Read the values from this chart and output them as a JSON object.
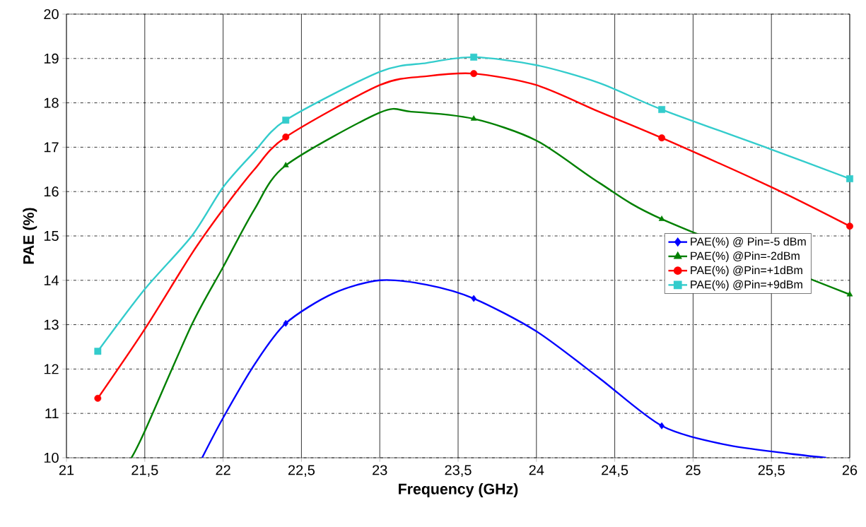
{
  "chart_data": {
    "type": "line",
    "xlabel": "Frequency (GHz)",
    "ylabel": "PAE (%)",
    "xlim": [
      21,
      26
    ],
    "ylim": [
      10,
      20
    ],
    "xticks": [
      21,
      {
        "value": 21.5,
        "label": "21,5"
      },
      22,
      {
        "value": 22.5,
        "label": "22,5"
      },
      23,
      {
        "value": 23.5,
        "label": "23,5"
      },
      24,
      {
        "value": 24.5,
        "label": "24,5"
      },
      25,
      {
        "value": 25.5,
        "label": "25,5"
      },
      26
    ],
    "yticks": [
      10,
      11,
      12,
      13,
      14,
      15,
      16,
      17,
      18,
      19,
      20
    ],
    "grid": true,
    "legend": "right",
    "series": [
      {
        "color": "#0000ff",
        "marker": "none",
        "x": [
          21.866,
          22.0,
          22.2,
          22.4,
          22.7,
          23.0,
          23.3,
          23.6,
          24.0,
          24.4,
          24.8,
          25.2,
          25.6,
          25.85
        ],
        "values": [
          10,
          10.9,
          12.1,
          13.03,
          13.7,
          14.0,
          13.9,
          13.59,
          12.85,
          11.8,
          10.72,
          10.3,
          10.1,
          10
        ]
      },
      {
        "color": "#008000",
        "marker": "none",
        "x": [
          21.415,
          21.5,
          21.8,
          22.0,
          22.2,
          22.4,
          23.0,
          23.2,
          23.6,
          24.0,
          24.4,
          24.8,
          25.5,
          26.0
        ],
        "values": [
          10,
          10.6,
          13.0,
          14.3,
          15.6,
          16.59,
          17.78,
          17.8,
          17.64,
          17.15,
          16.2,
          15.38,
          null,
          13.68
        ]
      },
      {
        "color": "#ff0000",
        "marker": "none",
        "x": [
          21.2,
          21.5,
          21.8,
          22.0,
          22.2,
          22.4,
          23.0,
          23.3,
          23.6,
          24.0,
          24.4,
          24.8,
          25.5,
          26.0
        ],
        "values": [
          11.34,
          12.9,
          14.6,
          15.6,
          16.5,
          17.23,
          18.4,
          18.6,
          18.66,
          18.4,
          17.8,
          17.21,
          16.1,
          15.22
        ]
      },
      {
        "color": "#33cccc",
        "marker": "none",
        "x": [
          21.2,
          21.5,
          21.8,
          22.0,
          22.2,
          22.4,
          23.0,
          23.3,
          23.6,
          24.0,
          24.4,
          24.8,
          25.5,
          26.0
        ],
        "values": [
          12.4,
          13.8,
          15.0,
          16.1,
          16.9,
          17.61,
          18.7,
          18.9,
          19.03,
          18.85,
          18.45,
          17.85,
          16.95,
          16.29
        ]
      },
      {
        "type": "scatter",
        "name": "PAE(%) @ Pin=-5 dBm",
        "color": "#0000ff",
        "marker": "diamond",
        "x": [
          22.4,
          23.6,
          24.8
        ],
        "values": [
          13.03,
          13.59,
          10.72
        ]
      },
      {
        "type": "scatter",
        "name": "PAE(%) @Pin=-2dBm",
        "color": "#008000",
        "marker": "triangle",
        "x": [
          22.4,
          23.6,
          24.8,
          26.0
        ],
        "values": [
          16.59,
          17.64,
          15.38,
          13.68
        ]
      },
      {
        "type": "scatter",
        "name": "PAE(%) @Pin=+1dBm",
        "color": "#ff0000",
        "marker": "circle",
        "x": [
          21.2,
          22.4,
          23.6,
          24.8,
          26.0
        ],
        "values": [
          11.34,
          17.23,
          18.66,
          17.21,
          15.22
        ]
      },
      {
        "type": "scatter",
        "name": "PAE(%) @Pin=+9dBm",
        "color": "#33cccc",
        "marker": "square",
        "x": [
          21.2,
          22.4,
          23.6,
          24.8,
          26.0
        ],
        "values": [
          12.4,
          17.61,
          19.03,
          17.85,
          16.29
        ]
      }
    ]
  }
}
